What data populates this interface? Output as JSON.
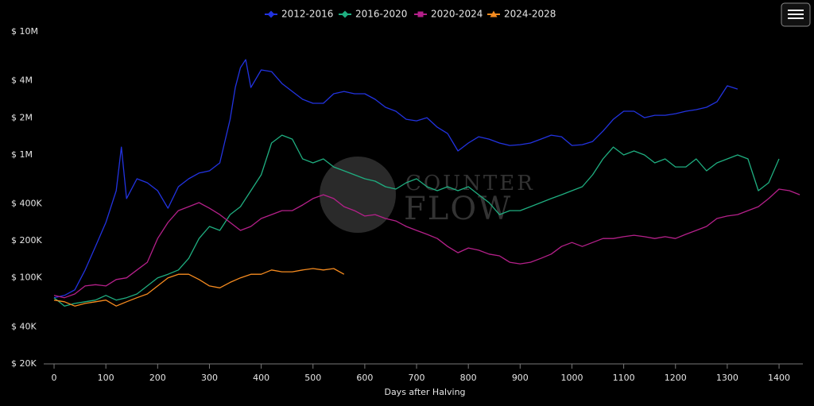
{
  "chart_data": {
    "type": "line",
    "x_label": "Days after Halving",
    "watermark": [
      "COUNTER",
      "FLOW"
    ],
    "log_y": true,
    "grid": false,
    "legend": "top",
    "xlim": [
      -20,
      1446
    ],
    "xticks": [
      0,
      100,
      200,
      300,
      400,
      500,
      600,
      700,
      800,
      900,
      1000,
      1100,
      1200,
      1300,
      1400
    ],
    "ylim": [
      20000,
      10000000
    ],
    "yticks": [
      {
        "value": 20000,
        "label": "$ 20K"
      },
      {
        "value": 40000,
        "label": "$ 40K"
      },
      {
        "value": 100000,
        "label": "$ 100K"
      },
      {
        "value": 200000,
        "label": "$ 200K"
      },
      {
        "value": 400000,
        "label": "$ 400K"
      },
      {
        "value": 1000000,
        "label": "$ 1M"
      },
      {
        "value": 2000000,
        "label": "$ 2M"
      },
      {
        "value": 4000000,
        "label": "$ 4M"
      },
      {
        "value": 10000000,
        "label": "$ 10M"
      }
    ],
    "series": [
      {
        "name": "2012-2016",
        "color": "#2233e0",
        "symbol": "diamond",
        "x": [
          0,
          20,
          40,
          60,
          80,
          100,
          120,
          130,
          140,
          160,
          180,
          200,
          220,
          240,
          260,
          280,
          300,
          320,
          340,
          350,
          360,
          370,
          380,
          400,
          420,
          440,
          460,
          480,
          500,
          520,
          540,
          560,
          580,
          600,
          620,
          640,
          660,
          680,
          700,
          720,
          740,
          760,
          780,
          800,
          820,
          840,
          860,
          880,
          900,
          920,
          940,
          960,
          980,
          1000,
          1020,
          1040,
          1060,
          1080,
          1100,
          1120,
          1140,
          1160,
          1180,
          1200,
          1220,
          1240,
          1260,
          1280,
          1300,
          1320
        ],
        "values": [
          69000,
          72000,
          80000,
          116000,
          180000,
          282000,
          511000,
          1157000,
          441000,
          639000,
          593000,
          511000,
          368000,
          551000,
          639000,
          711000,
          741000,
          860000,
          1946000,
          3528000,
          5116000,
          5940000,
          3528000,
          4896000,
          4750000,
          3800000,
          3276000,
          2824000,
          2622000,
          2622000,
          3134000,
          3276000,
          3134000,
          3134000,
          2824000,
          2434000,
          2260000,
          1946000,
          1890000,
          2006000,
          1678000,
          1490000,
          1075000,
          1247000,
          1404000,
          1342000,
          1247000,
          1192000,
          1210000,
          1247000,
          1342000,
          1446000,
          1404000,
          1192000,
          1210000,
          1284000,
          1558000,
          1946000,
          2260000,
          2260000,
          2006000,
          2097000,
          2097000,
          2160000,
          2260000,
          2328000,
          2434000,
          2700000,
          3636000,
          3424000
        ]
      },
      {
        "name": "2016-2020",
        "color": "#1fae80",
        "symbol": "diamond",
        "x": [
          0,
          20,
          40,
          60,
          80,
          100,
          120,
          140,
          160,
          180,
          200,
          220,
          240,
          260,
          280,
          300,
          320,
          340,
          360,
          380,
          400,
          420,
          440,
          460,
          480,
          500,
          520,
          540,
          560,
          580,
          600,
          620,
          640,
          660,
          680,
          700,
          720,
          740,
          760,
          780,
          800,
          820,
          840,
          860,
          880,
          900,
          920,
          940,
          960,
          980,
          1000,
          1020,
          1040,
          1060,
          1080,
          1100,
          1120,
          1140,
          1160,
          1180,
          1200,
          1220,
          1240,
          1260,
          1280,
          1300,
          1320,
          1340,
          1360,
          1380,
          1400
        ],
        "values": [
          69000,
          59000,
          62000,
          64000,
          66000,
          72000,
          66000,
          69000,
          74000,
          86000,
          100000,
          107000,
          116000,
          144000,
          209000,
          262000,
          243000,
          327000,
          379000,
          511000,
          688000,
          1247000,
          1446000,
          1342000,
          926000,
          860000,
          926000,
          798000,
          741000,
          688000,
          639000,
          611000,
          551000,
          527000,
          593000,
          639000,
          551000,
          511000,
          551000,
          511000,
          551000,
          474000,
          409000,
          327000,
          352000,
          352000,
          379000,
          409000,
          441000,
          474000,
          511000,
          551000,
          688000,
          926000,
          1157000,
          998000,
          1075000,
          998000,
          860000,
          926000,
          798000,
          798000,
          926000,
          741000,
          860000,
          926000,
          998000,
          926000,
          511000,
          593000,
          926000
        ]
      },
      {
        "name": "2020-2024",
        "color": "#b5208a",
        "symbol": "square",
        "x": [
          0,
          20,
          40,
          60,
          80,
          100,
          120,
          140,
          160,
          180,
          200,
          220,
          240,
          260,
          280,
          300,
          320,
          340,
          360,
          380,
          400,
          420,
          440,
          460,
          480,
          500,
          520,
          540,
          560,
          580,
          600,
          620,
          640,
          660,
          680,
          700,
          720,
          740,
          760,
          780,
          800,
          820,
          840,
          860,
          880,
          900,
          920,
          940,
          960,
          980,
          1000,
          1020,
          1040,
          1060,
          1080,
          1100,
          1120,
          1140,
          1160,
          1180,
          1200,
          1220,
          1240,
          1260,
          1280,
          1300,
          1320,
          1340,
          1360,
          1380,
          1400,
          1420,
          1440
        ],
        "values": [
          72000,
          69000,
          74000,
          86000,
          88000,
          86000,
          97000,
          100000,
          116000,
          134000,
          209000,
          282000,
          352000,
          379000,
          409000,
          368000,
          327000,
          282000,
          243000,
          262000,
          304000,
          327000,
          352000,
          352000,
          391000,
          441000,
          474000,
          441000,
          379000,
          352000,
          318000,
          327000,
          304000,
          290000,
          262000,
          243000,
          226000,
          209000,
          180000,
          160000,
          175000,
          168000,
          156000,
          151000,
          134000,
          130000,
          134000,
          144000,
          156000,
          180000,
          194000,
          180000,
          194000,
          209000,
          209000,
          216000,
          222000,
          216000,
          209000,
          216000,
          209000,
          226000,
          243000,
          262000,
          304000,
          318000,
          327000,
          352000,
          379000,
          441000,
          527000,
          511000,
          474000
        ]
      },
      {
        "name": "2024-2028",
        "color": "#f68b1f",
        "symbol": "triangle",
        "x": [
          0,
          20,
          40,
          60,
          80,
          100,
          120,
          140,
          160,
          180,
          200,
          220,
          240,
          260,
          280,
          300,
          320,
          340,
          360,
          380,
          400,
          420,
          440,
          460,
          480,
          500,
          520,
          540,
          560
        ],
        "values": [
          66000,
          64000,
          59000,
          62000,
          64000,
          66000,
          59000,
          64000,
          69000,
          74000,
          86000,
          100000,
          107000,
          107000,
          97000,
          86000,
          83000,
          92000,
          100000,
          107000,
          107000,
          116000,
          112000,
          112000,
          116000,
          119000,
          116000,
          119000,
          107000
        ]
      }
    ]
  }
}
